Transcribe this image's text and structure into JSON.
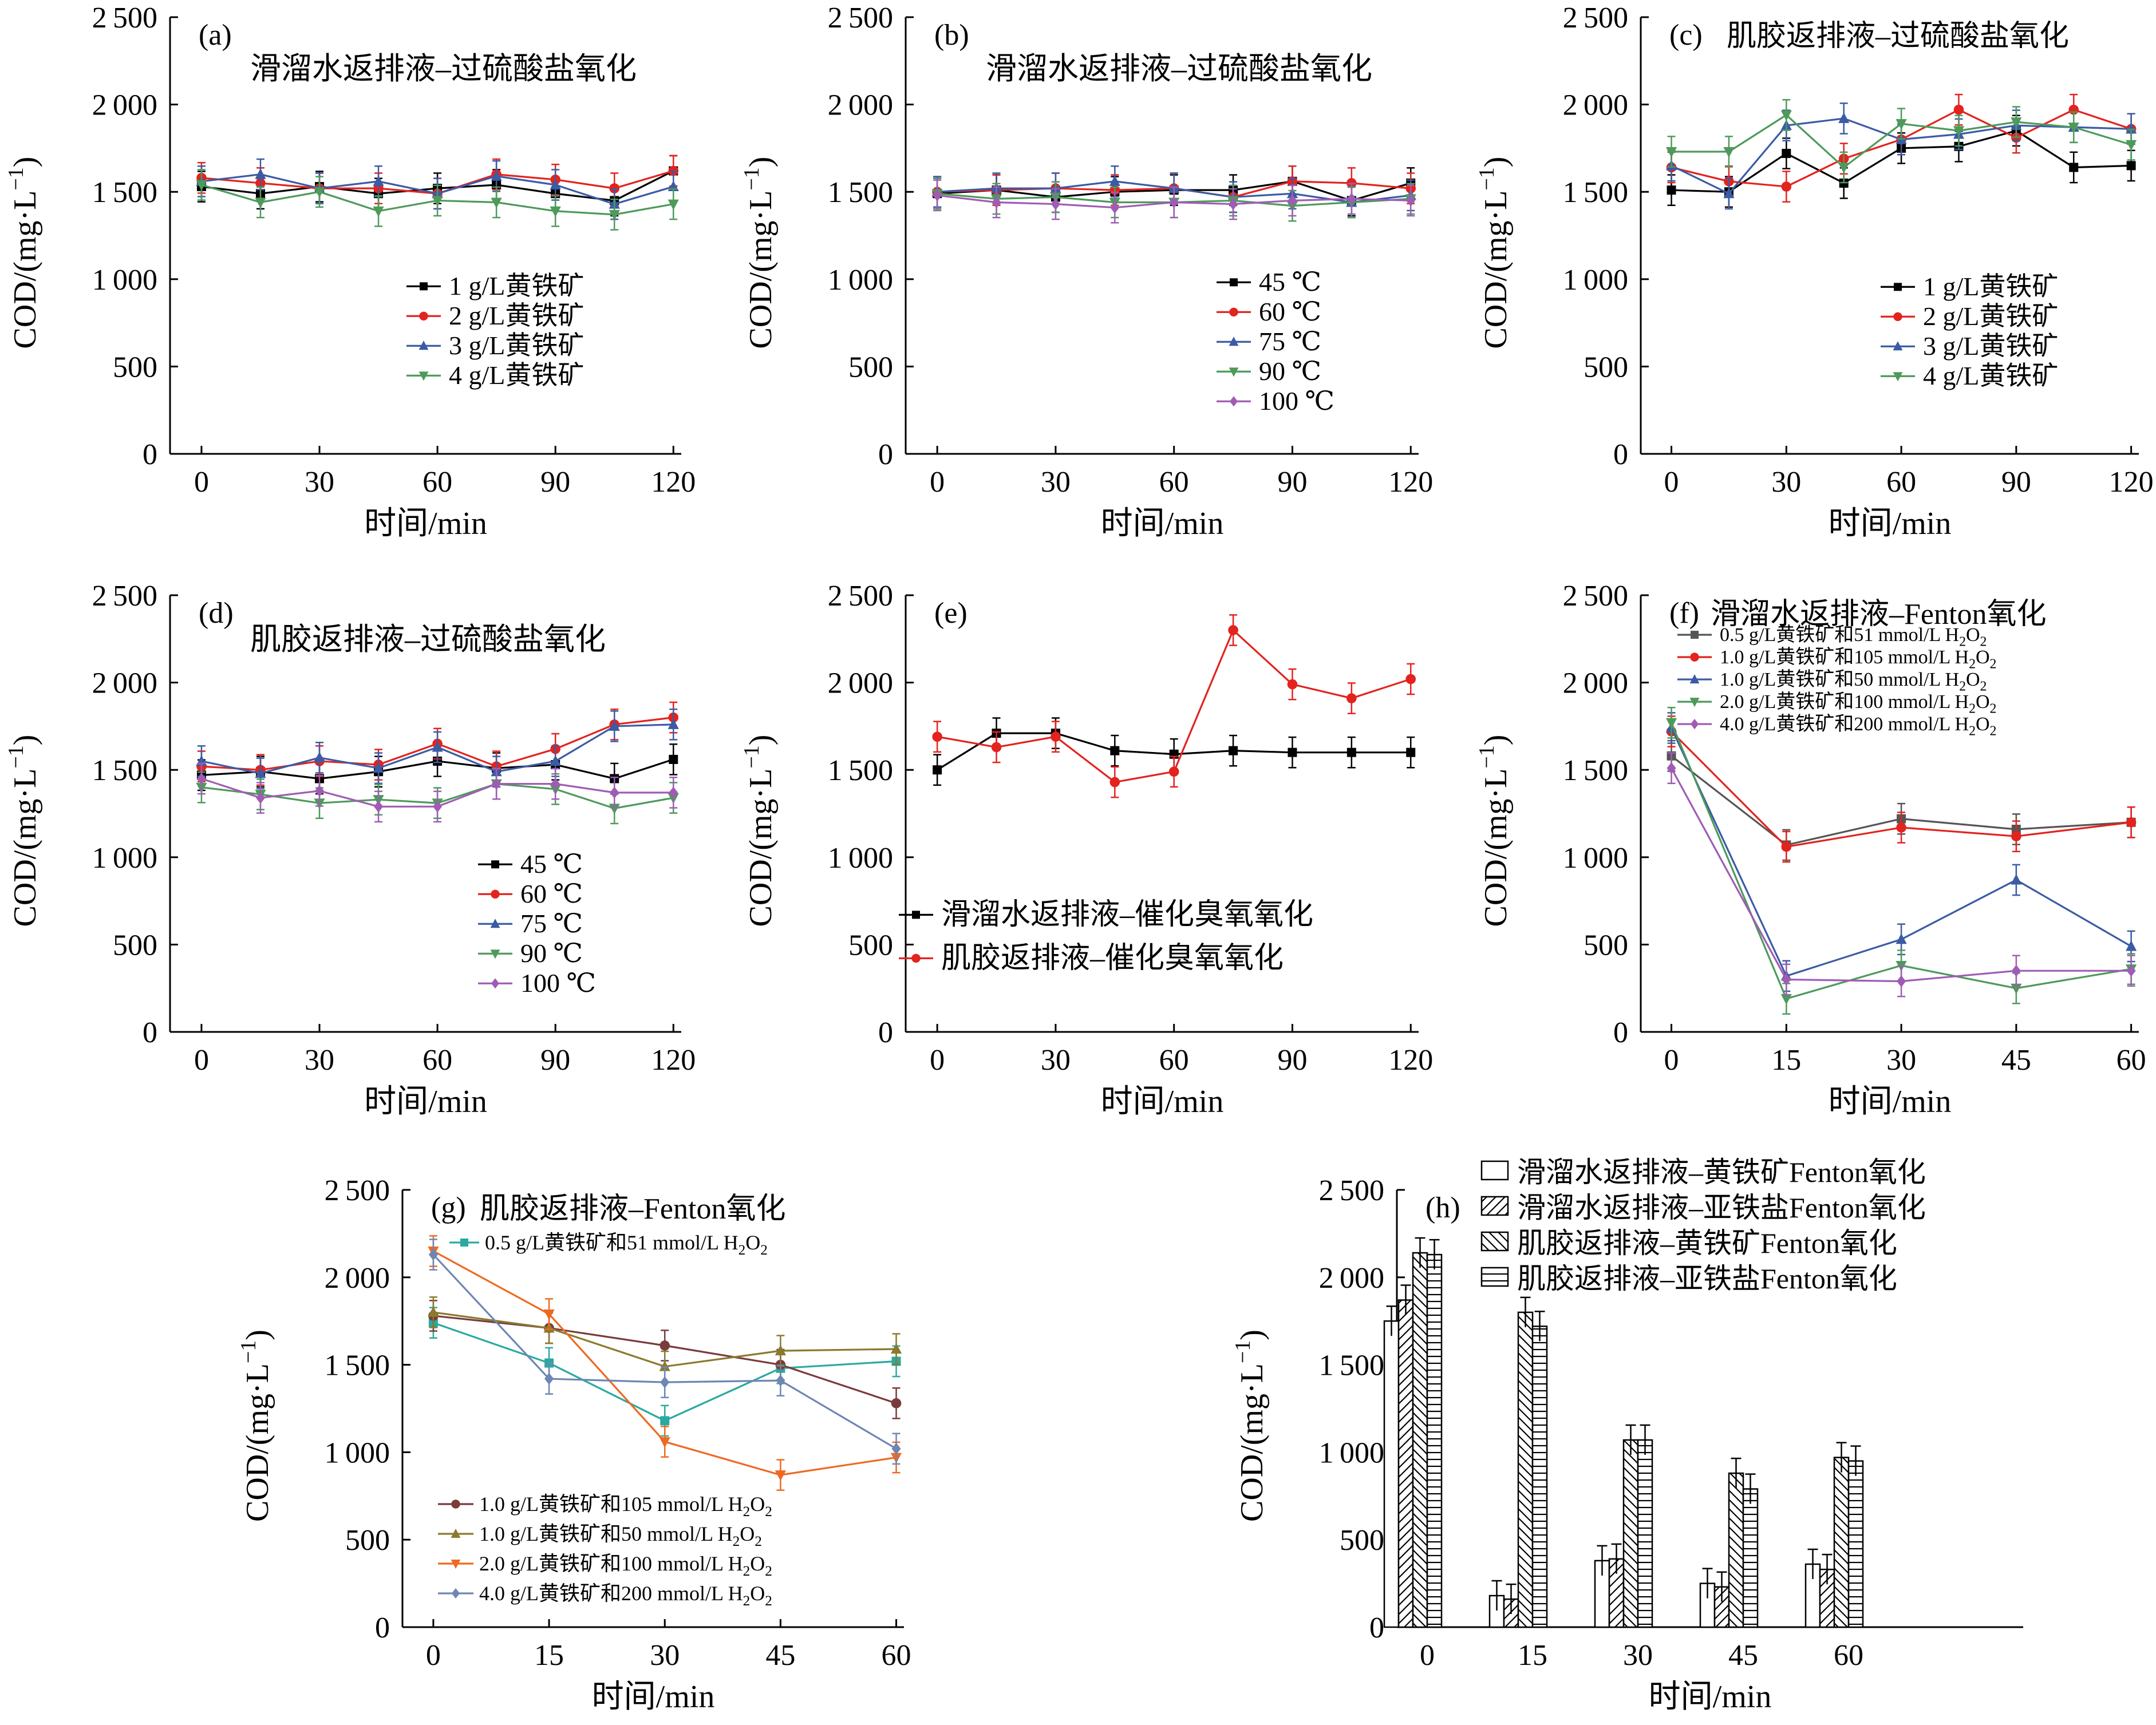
{
  "figure": {
    "axis_labels": {
      "y": "COD/(mg·L",
      "y_sup": "−1",
      "y_close": ")",
      "x": "时间/min"
    }
  },
  "chart_data": [
    {
      "id": "a",
      "type": "line",
      "panel_label": "(a)",
      "title": "滑溜水返排液–过硫酸盐氧化",
      "xlabel": "时间/min",
      "ylabel": "COD/(mg·L−1)",
      "xlim": [
        -8,
        122
      ],
      "ylim": [
        0,
        2500
      ],
      "xticks": [
        0,
        30,
        60,
        90,
        120
      ],
      "yticks": [
        0,
        500,
        1000,
        1500,
        2000,
        2500
      ],
      "x": [
        0,
        15,
        30,
        45,
        60,
        75,
        90,
        105,
        120
      ],
      "series": [
        {
          "name": "1 g/L黄铁矿",
          "color": "#000000",
          "marker": "square",
          "values": [
            1530,
            1490,
            1530,
            1490,
            1520,
            1540,
            1490,
            1450,
            1620
          ]
        },
        {
          "name": "2 g/L黄铁矿",
          "color": "#e3231e",
          "marker": "circle",
          "values": [
            1580,
            1550,
            1520,
            1520,
            1490,
            1600,
            1570,
            1520,
            1620
          ]
        },
        {
          "name": "3 g/L黄铁矿",
          "color": "#3b5ba5",
          "marker": "triangle-up",
          "values": [
            1560,
            1600,
            1520,
            1560,
            1490,
            1590,
            1540,
            1430,
            1530
          ]
        },
        {
          "name": "4 g/L黄铁矿",
          "color": "#4d9a5b",
          "marker": "triangle-down",
          "values": [
            1540,
            1440,
            1500,
            1390,
            1450,
            1440,
            1390,
            1370,
            1430
          ]
        }
      ],
      "legend": "bottom-right"
    },
    {
      "id": "b",
      "type": "line",
      "panel_label": "(b)",
      "title": "滑溜水返排液–过硫酸盐氧化",
      "xlabel": "时间/min",
      "ylabel": "COD/(mg·L−1)",
      "xlim": [
        -8,
        122
      ],
      "ylim": [
        0,
        2500
      ],
      "xticks": [
        0,
        30,
        60,
        90,
        120
      ],
      "yticks": [
        0,
        500,
        1000,
        1500,
        2000,
        2500
      ],
      "x": [
        0,
        15,
        30,
        45,
        60,
        75,
        90,
        105,
        120
      ],
      "series": [
        {
          "name": "45 ℃",
          "color": "#000000",
          "marker": "square",
          "values": [
            1490,
            1510,
            1470,
            1500,
            1510,
            1510,
            1560,
            1450,
            1550
          ]
        },
        {
          "name": "60 ℃",
          "color": "#e3231e",
          "marker": "circle",
          "values": [
            1500,
            1510,
            1520,
            1510,
            1520,
            1470,
            1560,
            1550,
            1520
          ]
        },
        {
          "name": "75 ℃",
          "color": "#3b5ba5",
          "marker": "triangle-up",
          "values": [
            1500,
            1520,
            1520,
            1560,
            1520,
            1470,
            1490,
            1440,
            1480
          ]
        },
        {
          "name": "90 ℃",
          "color": "#4d9a5b",
          "marker": "triangle-down",
          "values": [
            1490,
            1460,
            1470,
            1440,
            1440,
            1450,
            1420,
            1440,
            1460
          ]
        },
        {
          "name": "100 ℃",
          "color": "#a05cb4",
          "marker": "diamond",
          "values": [
            1480,
            1440,
            1430,
            1410,
            1440,
            1430,
            1450,
            1460,
            1450
          ]
        }
      ],
      "legend": "bottom-right"
    },
    {
      "id": "c",
      "type": "line",
      "panel_label": "(c)",
      "title": "肌胶返排液–过硫酸盐氧化",
      "xlabel": "时间/min",
      "ylabel": "COD/(mg·L−1)",
      "xlim": [
        -8,
        122
      ],
      "ylim": [
        0,
        2500
      ],
      "xticks": [
        0,
        30,
        60,
        90,
        120
      ],
      "yticks": [
        0,
        500,
        1000,
        1500,
        2000,
        2500
      ],
      "x": [
        0,
        15,
        30,
        45,
        60,
        75,
        90,
        105,
        120
      ],
      "series": [
        {
          "name": "1 g/L黄铁矿",
          "color": "#000000",
          "marker": "square",
          "values": [
            1510,
            1500,
            1720,
            1550,
            1750,
            1760,
            1850,
            1640,
            1650
          ]
        },
        {
          "name": "2 g/L黄铁矿",
          "color": "#e3231e",
          "marker": "circle",
          "values": [
            1640,
            1560,
            1530,
            1690,
            1800,
            1970,
            1810,
            1970,
            1860
          ]
        },
        {
          "name": "3 g/L黄铁矿",
          "color": "#3b5ba5",
          "marker": "triangle-up",
          "values": [
            1650,
            1490,
            1880,
            1920,
            1800,
            1830,
            1880,
            1870,
            1860
          ]
        },
        {
          "name": "4 g/L黄铁矿",
          "color": "#4d9a5b",
          "marker": "triangle-down",
          "values": [
            1730,
            1730,
            1940,
            1640,
            1890,
            1850,
            1900,
            1870,
            1770
          ]
        }
      ],
      "legend": "bottom-right"
    },
    {
      "id": "d",
      "type": "line",
      "panel_label": "(d)",
      "title": "肌胶返排液–过硫酸盐氧化",
      "xlabel": "时间/min",
      "ylabel": "COD/(mg·L−1)",
      "xlim": [
        -8,
        122
      ],
      "ylim": [
        0,
        2500
      ],
      "xticks": [
        0,
        30,
        60,
        90,
        120
      ],
      "yticks": [
        0,
        500,
        1000,
        1500,
        2000,
        2500
      ],
      "x": [
        0,
        15,
        30,
        45,
        60,
        75,
        90,
        105,
        120
      ],
      "series": [
        {
          "name": "45 ℃",
          "color": "#000000",
          "marker": "square",
          "values": [
            1470,
            1490,
            1450,
            1490,
            1550,
            1510,
            1530,
            1450,
            1560
          ]
        },
        {
          "name": "60 ℃",
          "color": "#e3231e",
          "marker": "circle",
          "values": [
            1520,
            1500,
            1550,
            1530,
            1650,
            1520,
            1620,
            1760,
            1800
          ]
        },
        {
          "name": "75 ℃",
          "color": "#3b5ba5",
          "marker": "triangle-up",
          "values": [
            1550,
            1480,
            1570,
            1510,
            1630,
            1490,
            1550,
            1750,
            1760
          ]
        },
        {
          "name": "90 ℃",
          "color": "#4d9a5b",
          "marker": "triangle-down",
          "values": [
            1400,
            1360,
            1310,
            1330,
            1310,
            1420,
            1390,
            1280,
            1340
          ]
        },
        {
          "name": "100 ℃",
          "color": "#a05cb4",
          "marker": "diamond",
          "values": [
            1450,
            1340,
            1380,
            1290,
            1290,
            1420,
            1420,
            1370,
            1370
          ]
        }
      ],
      "legend": "bottom-right"
    },
    {
      "id": "e",
      "type": "line",
      "panel_label": "(e)",
      "title": "",
      "xlabel": "时间/min",
      "ylabel": "COD/(mg·L−1)",
      "xlim": [
        -8,
        122
      ],
      "ylim": [
        0,
        2500
      ],
      "xticks": [
        0,
        30,
        60,
        90,
        120
      ],
      "yticks": [
        0,
        500,
        1000,
        1500,
        2000,
        2500
      ],
      "x": [
        0,
        15,
        30,
        45,
        60,
        75,
        90,
        105,
        120
      ],
      "series": [
        {
          "name": "滑溜水返排液–催化臭氧氧化",
          "color": "#000000",
          "marker": "square",
          "values": [
            1500,
            1710,
            1710,
            1610,
            1590,
            1610,
            1600,
            1600,
            1600
          ]
        },
        {
          "name": "肌胶返排液–催化臭氧氧化",
          "color": "#e3231e",
          "marker": "circle",
          "values": [
            1690,
            1630,
            1690,
            1430,
            1490,
            2300,
            1990,
            1910,
            2020
          ]
        }
      ],
      "legend": "bottom-left"
    },
    {
      "id": "f",
      "type": "line",
      "panel_label": "(f)",
      "title": "滑溜水返排液–Fenton氧化",
      "xlabel": "时间/min",
      "ylabel": "COD/(mg·L−1)",
      "xlim": [
        -4,
        61
      ],
      "ylim": [
        0,
        2500
      ],
      "xticks": [
        0,
        15,
        30,
        45,
        60
      ],
      "yticks": [
        0,
        500,
        1000,
        1500,
        2000,
        2500
      ],
      "x": [
        0,
        15,
        30,
        45,
        60
      ],
      "series": [
        {
          "name": "0.5 g/L黄铁矿和51 mmol/L H2O2",
          "color": "#555555",
          "marker": "square",
          "values": [
            1580,
            1070,
            1220,
            1160,
            1200
          ]
        },
        {
          "name": "1.0 g/L黄铁矿和105 mmol/L H2O2",
          "color": "#e3231e",
          "marker": "circle",
          "values": [
            1720,
            1060,
            1170,
            1120,
            1200
          ]
        },
        {
          "name": "1.0 g/L黄铁矿和50 mmol/L H2O2",
          "color": "#3b5ba5",
          "marker": "triangle-up",
          "values": [
            1740,
            320,
            530,
            870,
            490
          ]
        },
        {
          "name": "2.0 g/L黄铁矿和100 mmol/L H2O2",
          "color": "#4d9a5b",
          "marker": "triangle-down",
          "values": [
            1770,
            190,
            380,
            250,
            360
          ]
        },
        {
          "name": "4.0 g/L黄铁矿和200 mmol/L H2O2",
          "color": "#a05cb4",
          "marker": "diamond",
          "values": [
            1510,
            300,
            290,
            350,
            350
          ]
        }
      ],
      "legend": "top"
    },
    {
      "id": "g",
      "type": "line",
      "panel_label": "(g)",
      "title": "肌胶返排液–Fenton氧化",
      "xlabel": "时间/min",
      "ylabel": "COD/(mg·L−1)",
      "xlim": [
        -4,
        61
      ],
      "ylim": [
        0,
        2500
      ],
      "xticks": [
        0,
        15,
        30,
        45,
        60
      ],
      "yticks": [
        0,
        500,
        1000,
        1500,
        2000,
        2500
      ],
      "x": [
        0,
        15,
        30,
        45,
        60
      ],
      "series": [
        {
          "name": "0.5 g/L黄铁矿和51 mmol/L H2O2",
          "color": "#2aa9a0",
          "marker": "square",
          "values": [
            1740,
            1510,
            1180,
            1480,
            1520
          ]
        },
        {
          "name": "1.0 g/L黄铁矿和105 mmol/L H2O2",
          "color": "#7a3b3b",
          "marker": "circle",
          "values": [
            1780,
            1710,
            1610,
            1500,
            1280
          ]
        },
        {
          "name": "1.0 g/L黄铁矿和50 mmol/L H2O2",
          "color": "#8a7a2e",
          "marker": "triangle-up",
          "values": [
            1800,
            1710,
            1490,
            1580,
            1590
          ]
        },
        {
          "name": "2.0 g/L黄铁矿和100 mmol/L H2O2",
          "color": "#ee6a22",
          "marker": "triangle-down",
          "values": [
            2150,
            1790,
            1060,
            870,
            970
          ]
        },
        {
          "name": "4.0 g/L黄铁矿和200 mmol/L H2O2",
          "color": "#6e86b4",
          "marker": "diamond",
          "values": [
            2130,
            1420,
            1400,
            1410,
            1020
          ]
        }
      ],
      "legend": "top-right and bottom-left"
    },
    {
      "id": "h",
      "type": "bar",
      "panel_label": "(h)",
      "title": "",
      "xlabel": "时间/min",
      "ylabel": "COD/(mg·L−1)",
      "ylim": [
        0,
        2500
      ],
      "yticks": [
        0,
        500,
        1000,
        1500,
        2000,
        2500
      ],
      "categories": [
        "0",
        "15",
        "30",
        "45",
        "60"
      ],
      "series": [
        {
          "name": "滑溜水返排液–黄铁矿Fenton氧化",
          "pattern": "none",
          "values": [
            1750,
            180,
            380,
            250,
            360
          ]
        },
        {
          "name": "滑溜水返排液–亚铁盐Fenton氧化",
          "pattern": "diag-right",
          "values": [
            1870,
            160,
            390,
            230,
            330
          ]
        },
        {
          "name": "肌胶返排液–黄铁矿Fenton氧化",
          "pattern": "diag-left",
          "values": [
            2140,
            1800,
            1070,
            880,
            970
          ]
        },
        {
          "name": "肌胶返排液–亚铁盐Fenton氧化",
          "pattern": "horizontal",
          "values": [
            2130,
            1720,
            1070,
            790,
            950
          ]
        }
      ],
      "legend": "top"
    }
  ]
}
